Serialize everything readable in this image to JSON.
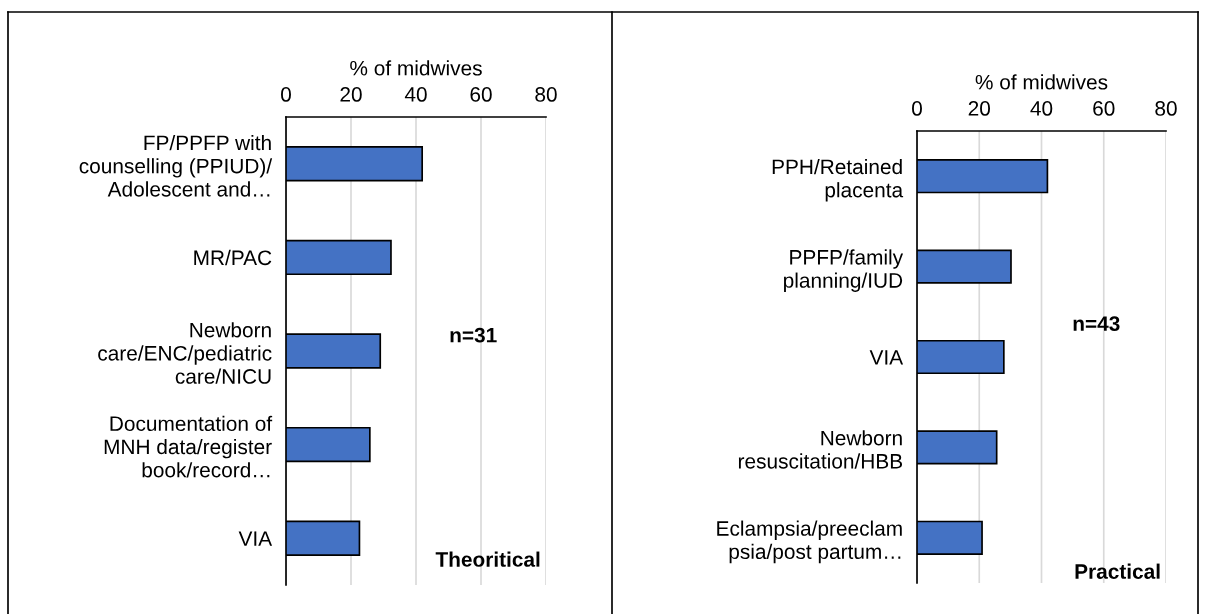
{
  "chart_data": [
    {
      "type": "bar",
      "orientation": "horizontal",
      "xlabel": "% of midwives",
      "categories": [
        "FP/PPFP with\ncounselling (PPIUD)/\nAdolescent and…",
        "MR/PAC",
        "Newborn\ncare/ENC/pediatric\ncare/NICU",
        "Documentation of\nMNH data/register\nbook/record…",
        "VIA"
      ],
      "values": [
        41.9,
        32.3,
        29.0,
        25.8,
        22.6
      ],
      "color": "#4472c4",
      "xlim": [
        0,
        80
      ],
      "xticks": [
        0,
        20,
        40,
        60,
        80
      ],
      "grid": "x",
      "annotations": [
        "n=31",
        "Theoritical"
      ]
    },
    {
      "type": "bar",
      "orientation": "horizontal",
      "xlabel": "% of midwives",
      "categories": [
        "PPH/Retained\nplacenta",
        "PPFP/family\nplanning/IUD",
        "VIA",
        "Newborn\nresuscitation/HBB",
        "Eclampsia/preeclam\npsia/post partum…"
      ],
      "values": [
        41.9,
        30.2,
        27.9,
        25.6,
        20.9
      ],
      "color": "#4472c4",
      "xlim": [
        0,
        80
      ],
      "xticks": [
        0,
        20,
        40,
        60,
        80
      ],
      "grid": "x",
      "annotations": [
        "n=43",
        "Practical"
      ]
    }
  ]
}
